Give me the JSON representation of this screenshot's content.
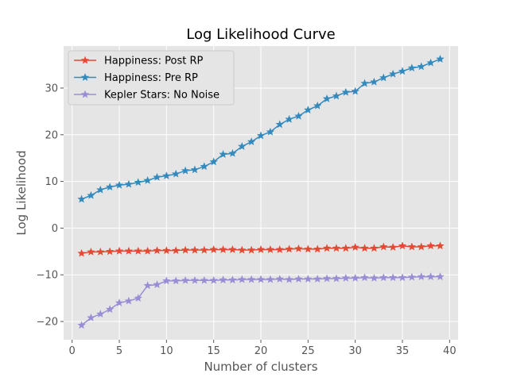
{
  "chart_data": {
    "type": "line",
    "title": "Log Likelihood Curve",
    "xlabel": "Number of clusters",
    "ylabel": "Log Likelihood",
    "xlim": [
      -0.9,
      40.9
    ],
    "ylim": [
      -23.9,
      39.0
    ],
    "xticks": [
      0,
      5,
      10,
      15,
      20,
      25,
      30,
      35,
      40
    ],
    "xtick_labels": [
      "0",
      "5",
      "10",
      "15",
      "20",
      "25",
      "30",
      "35",
      "40"
    ],
    "yticks": [
      -20,
      -10,
      0,
      10,
      20,
      30
    ],
    "ytick_labels": [
      "−20",
      "−10",
      "0",
      "10",
      "20",
      "30"
    ],
    "grid": true,
    "legend_position": "top-left",
    "marker": "star",
    "x": [
      1,
      2,
      3,
      4,
      5,
      6,
      7,
      8,
      9,
      10,
      11,
      12,
      13,
      14,
      15,
      16,
      17,
      18,
      19,
      20,
      21,
      22,
      23,
      24,
      25,
      26,
      27,
      28,
      29,
      30,
      31,
      32,
      33,
      34,
      35,
      36,
      37,
      38,
      39
    ],
    "series": [
      {
        "name": "Happiness: Post RP",
        "color": "#E24A33",
        "values": [
          -5.4,
          -5.1,
          -5.1,
          -5.0,
          -4.9,
          -4.9,
          -4.9,
          -4.9,
          -4.8,
          -4.8,
          -4.8,
          -4.7,
          -4.7,
          -4.7,
          -4.6,
          -4.6,
          -4.6,
          -4.7,
          -4.7,
          -4.6,
          -4.6,
          -4.6,
          -4.5,
          -4.4,
          -4.5,
          -4.5,
          -4.3,
          -4.3,
          -4.3,
          -4.1,
          -4.3,
          -4.3,
          -4.0,
          -4.1,
          -3.8,
          -4.0,
          -4.0,
          -3.8,
          -3.8
        ]
      },
      {
        "name": "Happiness: Pre RP",
        "color": "#348ABD",
        "values": [
          6.2,
          7.0,
          8.2,
          8.8,
          9.2,
          9.4,
          9.8,
          10.2,
          10.9,
          11.2,
          11.6,
          12.3,
          12.5,
          13.2,
          14.2,
          15.8,
          16.0,
          17.5,
          18.5,
          19.8,
          20.6,
          22.2,
          23.3,
          24.0,
          25.3,
          26.2,
          27.7,
          28.3,
          29.1,
          29.3,
          31.0,
          31.3,
          32.2,
          33.0,
          33.6,
          34.3,
          34.6,
          35.4,
          36.2
        ]
      },
      {
        "name": "Kepler Stars: No Noise",
        "color": "#988ED5",
        "values": [
          -20.8,
          -19.2,
          -18.4,
          -17.4,
          -16.0,
          -15.6,
          -15.0,
          -12.3,
          -12.1,
          -11.3,
          -11.3,
          -11.2,
          -11.2,
          -11.2,
          -11.2,
          -11.1,
          -11.1,
          -11.0,
          -11.0,
          -11.0,
          -11.0,
          -10.9,
          -11.0,
          -10.9,
          -10.9,
          -10.9,
          -10.8,
          -10.8,
          -10.7,
          -10.7,
          -10.6,
          -10.7,
          -10.6,
          -10.6,
          -10.6,
          -10.5,
          -10.4,
          -10.4,
          -10.4
        ]
      }
    ]
  }
}
